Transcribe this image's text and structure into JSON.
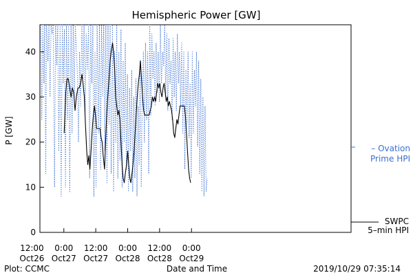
{
  "chart_data": {
    "type": "line",
    "title": "Hemispheric Power [GW]",
    "ylabel": "P [GW]",
    "xlabel": "Date and Time",
    "ylim": [
      0,
      46
    ],
    "yticks": [
      0,
      10,
      20,
      30,
      40
    ],
    "xlim_hours": [
      -33,
      84
    ],
    "xticks": [
      {
        "hour": -36,
        "time": "12:00",
        "date": "Oct26"
      },
      {
        "hour": -24,
        "time": "0:00",
        "date": "Oct27"
      },
      {
        "hour": -12,
        "time": "12:00",
        "date": "Oct27"
      },
      {
        "hour": 0,
        "time": "0:00",
        "date": "Oct28"
      },
      {
        "hour": 12,
        "time": "12:00",
        "date": "Oct28"
      },
      {
        "hour": 24,
        "time": "0:00",
        "date": "Oct29"
      }
    ],
    "series": [
      {
        "name": "Ovation Prime HPI",
        "label_lines": [
          "– Ovation",
          "Prime HPI"
        ],
        "color": "#3a6fd0",
        "style": "dotted",
        "points": [
          [
            -32.7,
            46
          ],
          [
            -32.3,
            25
          ],
          [
            -31.9,
            46
          ],
          [
            -31.5,
            33
          ],
          [
            -31.2,
            46
          ],
          [
            -30.8,
            13
          ],
          [
            -30.5,
            46
          ],
          [
            -30.0,
            38
          ],
          [
            -29.6,
            46
          ],
          [
            -29.2,
            30
          ],
          [
            -28.8,
            46
          ],
          [
            -28.4,
            44
          ],
          [
            -28.0,
            46
          ],
          [
            -27.5,
            10
          ],
          [
            -27.1,
            46
          ],
          [
            -26.7,
            37
          ],
          [
            -26.3,
            46
          ],
          [
            -25.9,
            18
          ],
          [
            -25.4,
            46
          ],
          [
            -25.0,
            8
          ],
          [
            -24.6,
            46
          ],
          [
            -24.2,
            33
          ],
          [
            -23.8,
            45
          ],
          [
            -23.4,
            10
          ],
          [
            -23.0,
            46
          ],
          [
            -22.6,
            25
          ],
          [
            -22.2,
            46
          ],
          [
            -21.8,
            9
          ],
          [
            -21.3,
            46
          ],
          [
            -20.9,
            22
          ],
          [
            -20.5,
            46
          ],
          [
            -20.1,
            30
          ],
          [
            -19.7,
            46
          ],
          [
            -19.3,
            41
          ],
          [
            -18.9,
            35
          ],
          [
            -18.5,
            20
          ],
          [
            -18.1,
            40
          ],
          [
            -17.7,
            28
          ],
          [
            -17.2,
            46
          ],
          [
            -16.8,
            34
          ],
          [
            -16.4,
            46
          ],
          [
            -16.0,
            27
          ],
          [
            -15.6,
            44
          ],
          [
            -15.2,
            36
          ],
          [
            -14.7,
            46
          ],
          [
            -14.3,
            12
          ],
          [
            -13.9,
            46
          ],
          [
            -13.5,
            33
          ],
          [
            -13.1,
            46
          ],
          [
            -12.7,
            8
          ],
          [
            -12.3,
            40
          ],
          [
            -11.9,
            10
          ],
          [
            -11.5,
            46
          ],
          [
            -11.0,
            22
          ],
          [
            -10.6,
            46
          ],
          [
            -10.2,
            14
          ],
          [
            -9.8,
            46
          ],
          [
            -9.4,
            30
          ],
          [
            -9.0,
            46
          ],
          [
            -8.6,
            18
          ],
          [
            -8.2,
            46
          ],
          [
            -7.8,
            11
          ],
          [
            -7.4,
            46
          ],
          [
            -7.0,
            24
          ],
          [
            -6.6,
            46
          ],
          [
            -6.2,
            13
          ],
          [
            -5.7,
            46
          ],
          [
            -5.3,
            9
          ],
          [
            -4.9,
            40
          ],
          [
            -4.5,
            20
          ],
          [
            -4.1,
            46
          ],
          [
            -3.7,
            12
          ],
          [
            -3.3,
            40
          ],
          [
            -2.9,
            16
          ],
          [
            -2.5,
            45
          ],
          [
            -2.1,
            10
          ],
          [
            -1.7,
            38
          ],
          [
            -1.3,
            20
          ],
          [
            -0.9,
            42
          ],
          [
            -0.5,
            14
          ],
          [
            -0.1,
            35
          ],
          [
            0.3,
            9
          ],
          [
            0.7,
            32
          ],
          [
            1.1,
            18
          ],
          [
            1.5,
            36
          ],
          [
            1.9,
            9
          ],
          [
            2.3,
            30
          ],
          [
            2.7,
            12
          ],
          [
            3.1,
            34
          ],
          [
            3.5,
            8
          ],
          [
            3.9,
            28
          ],
          [
            4.3,
            15
          ],
          [
            4.7,
            38
          ],
          [
            5.1,
            10
          ],
          [
            5.5,
            30
          ],
          [
            5.9,
            40
          ],
          [
            6.3,
            20
          ],
          [
            6.7,
            42
          ],
          [
            7.1,
            25
          ],
          [
            7.5,
            40
          ],
          [
            7.9,
            13
          ],
          [
            8.3,
            46
          ],
          [
            8.7,
            26
          ],
          [
            9.1,
            44
          ],
          [
            9.5,
            34
          ],
          [
            9.9,
            40
          ],
          [
            10.3,
            28
          ],
          [
            10.7,
            42
          ],
          [
            11.1,
            31
          ],
          [
            11.5,
            40
          ],
          [
            11.9,
            29
          ],
          [
            12.3,
            46
          ],
          [
            12.7,
            33
          ],
          [
            13.1,
            40
          ],
          [
            13.5,
            37
          ],
          [
            13.9,
            46
          ],
          [
            14.3,
            30
          ],
          [
            14.7,
            44
          ],
          [
            15.1,
            27
          ],
          [
            15.5,
            43
          ],
          [
            15.9,
            33
          ],
          [
            16.3,
            38
          ],
          [
            16.7,
            25
          ],
          [
            17.1,
            43
          ],
          [
            17.5,
            30
          ],
          [
            17.9,
            40
          ],
          [
            18.3,
            27
          ],
          [
            18.7,
            44
          ],
          [
            19.1,
            33
          ],
          [
            19.5,
            40
          ],
          [
            19.9,
            28
          ],
          [
            20.3,
            42
          ],
          [
            20.7,
            22
          ],
          [
            21.1,
            40
          ],
          [
            21.5,
            14
          ],
          [
            21.9,
            36
          ],
          [
            22.3,
            24
          ],
          [
            22.7,
            40
          ],
          [
            23.1,
            21
          ],
          [
            23.5,
            33
          ],
          [
            23.9,
            12
          ],
          [
            24.3,
            40
          ],
          [
            24.7,
            22
          ],
          [
            25.1,
            36
          ],
          [
            25.5,
            28
          ],
          [
            25.9,
            40
          ],
          [
            26.3,
            19
          ],
          [
            26.7,
            38
          ],
          [
            27.1,
            13
          ],
          [
            27.5,
            34
          ],
          [
            27.9,
            9
          ],
          [
            28.3,
            30
          ],
          [
            28.7,
            8
          ],
          [
            29.1,
            28
          ],
          [
            29.5,
            9
          ],
          [
            29.9,
            12
          ]
        ]
      },
      {
        "name": "SWPC 5-min HPI",
        "label_lines": [
          "SWPC",
          "5–min HPI"
        ],
        "color": "#000000",
        "style": "solid",
        "points": [
          [
            -23.9,
            22
          ],
          [
            -23.3,
            31
          ],
          [
            -22.8,
            34
          ],
          [
            -22.3,
            34
          ],
          [
            -21.8,
            32
          ],
          [
            -21.3,
            30
          ],
          [
            -20.8,
            32
          ],
          [
            -20.3,
            31
          ],
          [
            -19.8,
            27
          ],
          [
            -19.3,
            30
          ],
          [
            -18.7,
            32
          ],
          [
            -18.2,
            32
          ],
          [
            -17.7,
            33
          ],
          [
            -17.2,
            35
          ],
          [
            -16.8,
            33
          ],
          [
            -16.3,
            30
          ],
          [
            -15.9,
            24
          ],
          [
            -15.4,
            18
          ],
          [
            -15.0,
            15
          ],
          [
            -14.6,
            17
          ],
          [
            -14.2,
            14
          ],
          [
            -13.7,
            19
          ],
          [
            -13.3,
            23
          ],
          [
            -12.9,
            26
          ],
          [
            -12.5,
            28
          ],
          [
            -12.1,
            26
          ],
          [
            -11.7,
            23
          ],
          [
            -11.2,
            23
          ],
          [
            -10.8,
            23
          ],
          [
            -10.4,
            23
          ],
          [
            -10.0,
            21
          ],
          [
            -9.6,
            20
          ],
          [
            -9.2,
            17
          ],
          [
            -8.7,
            14
          ],
          [
            -8.3,
            20
          ],
          [
            -7.9,
            26
          ],
          [
            -7.5,
            30
          ],
          [
            -7.0,
            34
          ],
          [
            -6.6,
            38
          ],
          [
            -6.2,
            40
          ],
          [
            -5.7,
            42
          ],
          [
            -5.3,
            40
          ],
          [
            -4.9,
            36
          ],
          [
            -4.5,
            30
          ],
          [
            -4.1,
            28
          ],
          [
            -3.7,
            26
          ],
          [
            -3.3,
            27
          ],
          [
            -2.9,
            25
          ],
          [
            -2.5,
            20
          ],
          [
            -2.1,
            15
          ],
          [
            -1.7,
            12
          ],
          [
            -1.3,
            11
          ],
          [
            -0.9,
            13
          ],
          [
            -0.4,
            15
          ],
          [
            0.0,
            18
          ],
          [
            0.4,
            15
          ],
          [
            0.8,
            12
          ],
          [
            1.2,
            11
          ],
          [
            1.6,
            13
          ],
          [
            2.0,
            15
          ],
          [
            2.4,
            18
          ],
          [
            2.8,
            22
          ],
          [
            3.2,
            26
          ],
          [
            3.6,
            30
          ],
          [
            4.0,
            33
          ],
          [
            4.4,
            35
          ],
          [
            4.8,
            38
          ],
          [
            5.2,
            34
          ],
          [
            5.6,
            30
          ],
          [
            6.0,
            27
          ],
          [
            6.4,
            26
          ],
          [
            6.8,
            26
          ],
          [
            7.2,
            26
          ],
          [
            7.7,
            26
          ],
          [
            8.1,
            26
          ],
          [
            8.5,
            27
          ],
          [
            8.9,
            28
          ],
          [
            9.3,
            30
          ],
          [
            9.7,
            29
          ],
          [
            10.1,
            30
          ],
          [
            10.5,
            29
          ],
          [
            10.9,
            31
          ],
          [
            11.3,
            33
          ],
          [
            11.7,
            32
          ],
          [
            12.1,
            33
          ],
          [
            12.5,
            31
          ],
          [
            12.9,
            30
          ],
          [
            13.3,
            32
          ],
          [
            13.7,
            33
          ],
          [
            14.1,
            31
          ],
          [
            14.5,
            29
          ],
          [
            14.9,
            30
          ],
          [
            15.3,
            28
          ],
          [
            15.7,
            29
          ],
          [
            16.1,
            28
          ],
          [
            16.5,
            27
          ],
          [
            16.9,
            25
          ],
          [
            17.3,
            22
          ],
          [
            17.7,
            21
          ],
          [
            18.1,
            23
          ],
          [
            18.5,
            25
          ],
          [
            18.9,
            24
          ],
          [
            19.3,
            26
          ],
          [
            19.7,
            28
          ],
          [
            20.1,
            28
          ],
          [
            20.5,
            28
          ],
          [
            20.9,
            28
          ],
          [
            21.3,
            28
          ],
          [
            21.7,
            26
          ],
          [
            22.1,
            22
          ],
          [
            22.5,
            18
          ],
          [
            22.9,
            14
          ],
          [
            23.3,
            12
          ],
          [
            23.7,
            11
          ]
        ]
      }
    ],
    "footer": {
      "left": "Plot: CCMC",
      "center": "Date and Time",
      "right": "2019/10/29 07:35:14"
    }
  }
}
